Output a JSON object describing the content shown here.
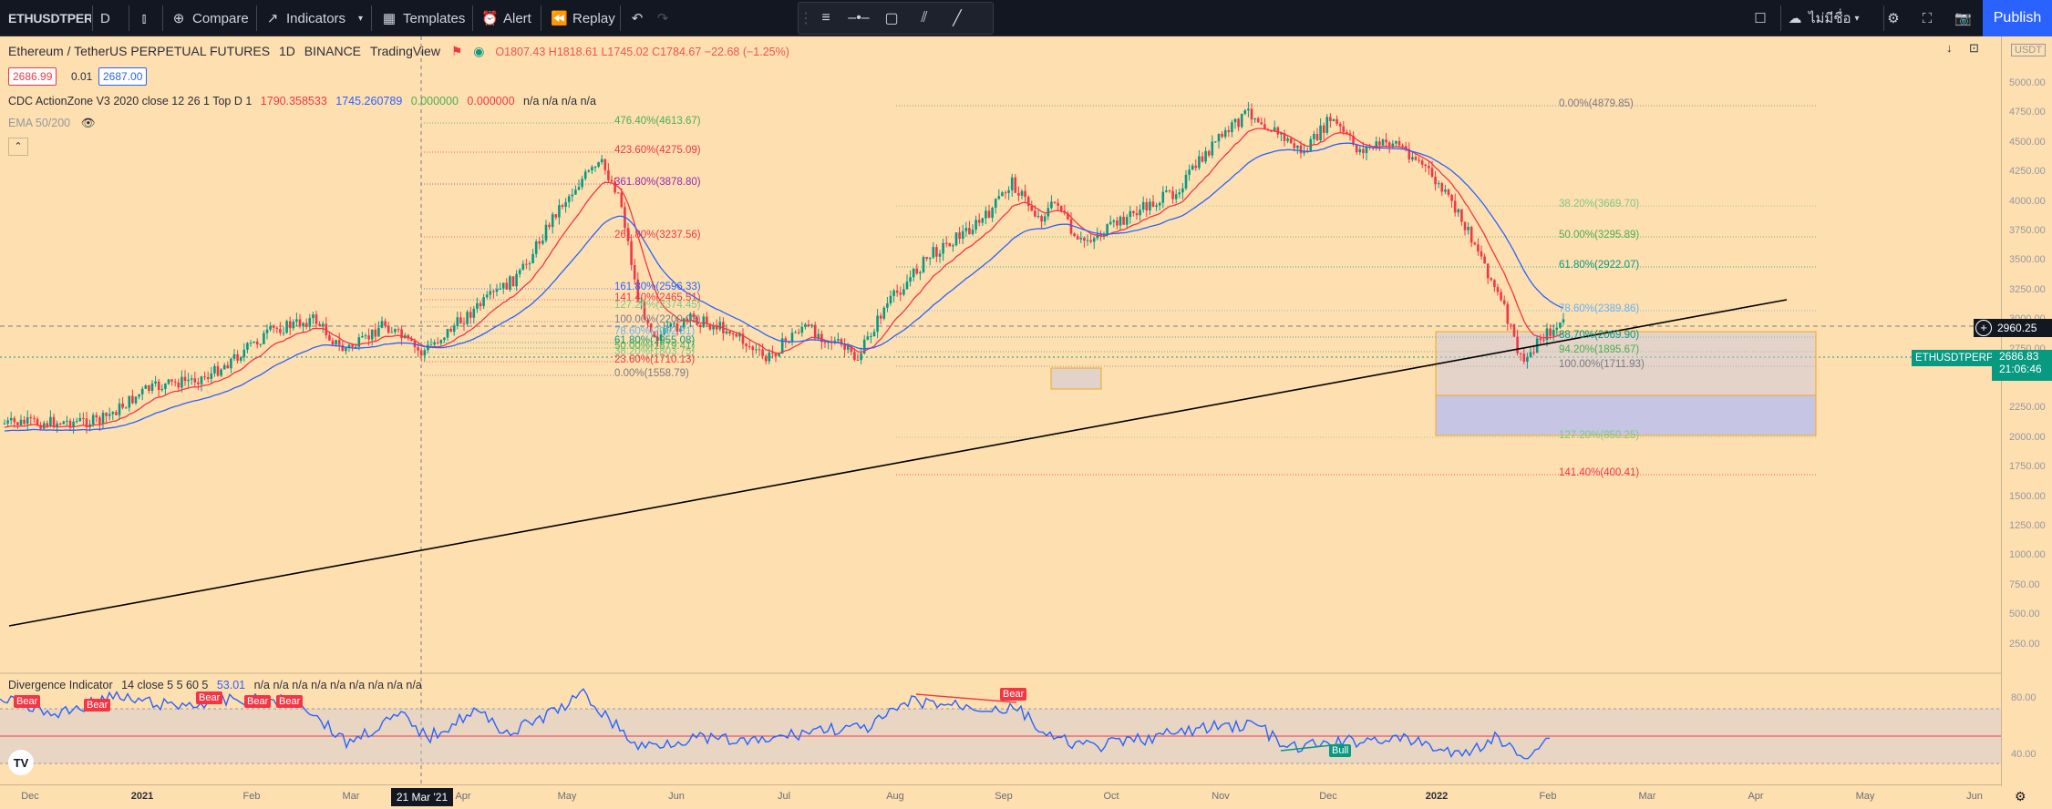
{
  "toolbar": {
    "symbol": "ETHUSDTPERP",
    "interval": "D",
    "compare": "Compare",
    "indicators": "Indicators",
    "templates": "Templates",
    "alert": "Alert",
    "replay": "Replay",
    "layout": "ไม่มีชื่อ",
    "publish": "Publish"
  },
  "legend": {
    "title": "Ethereum / TetherUS PERPETUAL FUTURES",
    "interval": "1D",
    "exchange": "BINANCE",
    "source": "TradingView",
    "ohlc": "O1807.43  H1818.61  L1745.02  C1784.67  −22.68 (−1.25%)",
    "bid": "2686.99",
    "spread": "0.01",
    "ask": "2687.00",
    "indicator1_name": "CDC ActionZone V3 2020 close 12 26 1 Top D 1",
    "indicator1_v1": "1790.358533",
    "indicator1_v2": "1745.260789",
    "indicator1_v3": "0.000000",
    "indicator1_v4": "0.000000",
    "indicator1_rest": "n/a  n/a  n/a  n/a",
    "indicator2_name": "EMA 50/200",
    "osc_name": "Divergence Indicator",
    "osc_params": "14 close 5 5 60 5",
    "osc_value": "53.01",
    "osc_rest": "n/a  n/a  n/a  n/a  n/a  n/a  n/a  n/a  n/a"
  },
  "price_axis": {
    "currency": "USDT",
    "labels": [
      "5000.00",
      "4750.00",
      "4500.00",
      "4250.00",
      "4000.00",
      "3750.00",
      "3500.00",
      "3250.00",
      "3000.00",
      "2750.00",
      "2500.00",
      "2250.00",
      "2000.00",
      "1750.00",
      "1500.00",
      "1250.00",
      "1000.00",
      "750.00",
      "500.00",
      "250.00"
    ],
    "crosshair_price": "2960.25",
    "last_price": "2686.83",
    "countdown": "21:06:46",
    "symbol_tag": "ETHUSDTPERP",
    "osc_labels": [
      "80.00",
      "40.00"
    ]
  },
  "time_axis": {
    "labels": [
      "Dec",
      "2021",
      "Feb",
      "Mar",
      "Apr",
      "May",
      "Jun",
      "Jul",
      "Aug",
      "Sep",
      "Oct",
      "Nov",
      "Dec",
      "2022",
      "Feb",
      "Mar",
      "Apr",
      "May",
      "Jun"
    ],
    "crosshair_date": "21 Mar '21"
  },
  "fib_left": [
    {
      "text": "476.40%(4613.67)",
      "color": "#4caf50"
    },
    {
      "text": "423.60%(4275.09)",
      "color": "#f23645"
    },
    {
      "text": "361.80%(3878.80)",
      "color": "#9c27b0"
    },
    {
      "text": "261.80%(3237.56)",
      "color": "#f23645"
    },
    {
      "text": "161.80%(2596.33)",
      "color": "#2962ff"
    },
    {
      "text": "141.40%(2465.51)",
      "color": "#f23645"
    },
    {
      "text": "127.20%(2374.45)",
      "color": "#81c784"
    },
    {
      "text": "100.00%(2200.03)",
      "color": "#787b86"
    },
    {
      "text": "78.60%(2062.81)",
      "color": "#64b5f6"
    },
    {
      "text": "61.80%(1955.08)",
      "color": "#089981"
    },
    {
      "text": "50.00%(1879.41)",
      "color": "#4caf50"
    },
    {
      "text": "38.20%(1803.75)",
      "color": "#81c784"
    },
    {
      "text": "23.60%(1710.13)",
      "color": "#f23645"
    },
    {
      "text": "0.00%(1558.79)",
      "color": "#787b86"
    }
  ],
  "fib_right": [
    {
      "text": "0.00%(4879.85)",
      "color": "#787b86"
    },
    {
      "text": "38.20%(3669.70)",
      "color": "#81c784"
    },
    {
      "text": "50.00%(3295.89)",
      "color": "#4caf50"
    },
    {
      "text": "61.80%(2922.07)",
      "color": "#089981"
    },
    {
      "text": "78.60%(2389.86)",
      "color": "#64b5f6"
    },
    {
      "text": "88.70%(2069.90)",
      "color": "#089981"
    },
    {
      "text": "94.20%(1895.67)",
      "color": "#4caf50"
    },
    {
      "text": "100.00%(1711.93)",
      "color": "#787b86"
    },
    {
      "text": "127.20%(850.25)",
      "color": "#81c784"
    },
    {
      "text": "141.40%(400.41)",
      "color": "#f23645"
    }
  ],
  "osc_tags": {
    "bear": "Bear",
    "bull": "Bull"
  },
  "colors": {
    "bg": "#fedfb0",
    "up": "#089981",
    "down": "#f23645",
    "osc_line": "#2962ff",
    "trend": "#000000"
  }
}
